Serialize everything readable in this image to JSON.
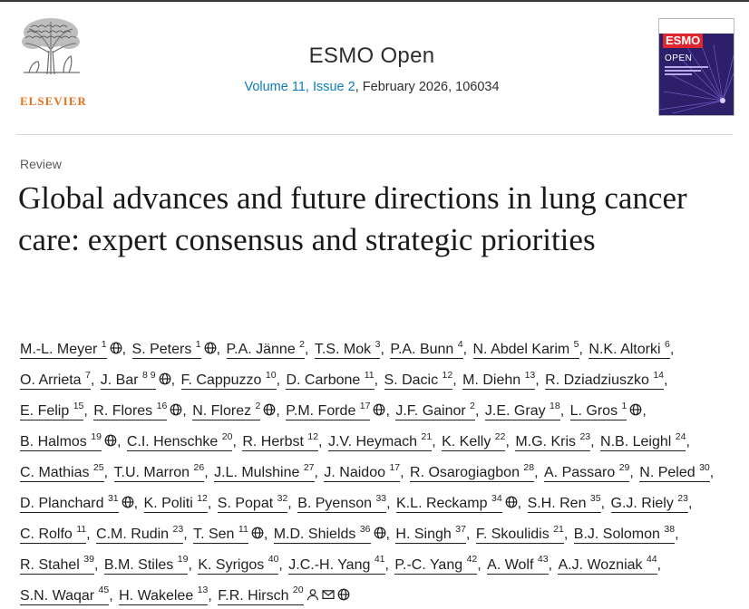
{
  "header": {
    "publisher": "ELSEVIER",
    "journal_title": "ESMO Open",
    "volume_link": "Volume 11, Issue 2",
    "issue_rest": ", February 2026, 106034",
    "cover": {
      "brand": "ESMO",
      "title": "OPEN"
    }
  },
  "article": {
    "kind": "Review",
    "title": "Global advances and future directions in lung cancer care: expert consensus and strategic priorities"
  },
  "icons": {
    "orcid": "globe-icon",
    "person": "person-icon",
    "email": "envelope-icon"
  },
  "colors": {
    "link": "#0c7dbb",
    "elsevier_orange": "#e9711c",
    "cover_bg": "#2e1f6b"
  },
  "authors": [
    {
      "name": "M.-L. Meyer",
      "sup": "1",
      "globe": true
    },
    {
      "name": "S. Peters",
      "sup": "1",
      "globe": true
    },
    {
      "name": "P.A. Jänne",
      "sup": "2"
    },
    {
      "name": "T.S. Mok",
      "sup": "3"
    },
    {
      "name": "P.A. Bunn",
      "sup": "4"
    },
    {
      "name": "N. Abdel Karim",
      "sup": "5"
    },
    {
      "name": "N.K. Altorki",
      "sup": "6"
    },
    {
      "name": "O. Arrieta",
      "sup": "7"
    },
    {
      "name": "J. Bar",
      "sup": "8 9",
      "globe": true
    },
    {
      "name": "F. Cappuzzo",
      "sup": "10"
    },
    {
      "name": "D. Carbone",
      "sup": "11"
    },
    {
      "name": "S. Dacic",
      "sup": "12"
    },
    {
      "name": "M. Diehn",
      "sup": "13"
    },
    {
      "name": "R. Dziadziuszko",
      "sup": "14"
    },
    {
      "name": "E. Felip",
      "sup": "15"
    },
    {
      "name": "R. Flores",
      "sup": "16",
      "globe": true
    },
    {
      "name": "N. Florez",
      "sup": "2",
      "globe": true
    },
    {
      "name": "P.M. Forde",
      "sup": "17",
      "globe": true
    },
    {
      "name": "J.F. Gainor",
      "sup": "2"
    },
    {
      "name": "J.E. Gray",
      "sup": "18"
    },
    {
      "name": "L. Gros",
      "sup": "1",
      "globe": true
    },
    {
      "name": "B. Halmos",
      "sup": "19",
      "globe": true
    },
    {
      "name": "C.I. Henschke",
      "sup": "20"
    },
    {
      "name": "R. Herbst",
      "sup": "12"
    },
    {
      "name": "J.V. Heymach",
      "sup": "21"
    },
    {
      "name": "K. Kelly",
      "sup": "22"
    },
    {
      "name": "M.G. Kris",
      "sup": "23"
    },
    {
      "name": "N.B. Leighl",
      "sup": "24"
    },
    {
      "name": "C. Mathias",
      "sup": "25"
    },
    {
      "name": "T.U. Marron",
      "sup": "26"
    },
    {
      "name": "J.L. Mulshine",
      "sup": "27"
    },
    {
      "name": "J. Naidoo",
      "sup": "17"
    },
    {
      "name": "R. Osarogiagbon",
      "sup": "28"
    },
    {
      "name": "A. Passaro",
      "sup": "29"
    },
    {
      "name": "N. Peled",
      "sup": "30"
    },
    {
      "name": "D. Planchard",
      "sup": "31",
      "globe": true
    },
    {
      "name": "K. Politi",
      "sup": "12"
    },
    {
      "name": "S. Popat",
      "sup": "32"
    },
    {
      "name": "B. Pyenson",
      "sup": "33"
    },
    {
      "name": "K.L. Reckamp",
      "sup": "34",
      "globe": true
    },
    {
      "name": "S.H. Ren",
      "sup": "35"
    },
    {
      "name": "G.J. Riely",
      "sup": "23"
    },
    {
      "name": "C. Rolfo",
      "sup": "11"
    },
    {
      "name": "C.M. Rudin",
      "sup": "23"
    },
    {
      "name": "T. Sen",
      "sup": "11",
      "globe": true
    },
    {
      "name": "M.D. Shields",
      "sup": "36",
      "globe": true
    },
    {
      "name": "H. Singh",
      "sup": "37"
    },
    {
      "name": "F. Skoulidis",
      "sup": "21"
    },
    {
      "name": "B.J. Solomon",
      "sup": "38"
    },
    {
      "name": "R. Stahel",
      "sup": "39"
    },
    {
      "name": "B.M. Stiles",
      "sup": "19"
    },
    {
      "name": "K. Syrigos",
      "sup": "40"
    },
    {
      "name": "J.C.-H. Yang",
      "sup": "41"
    },
    {
      "name": "P.-C. Yang",
      "sup": "42"
    },
    {
      "name": "A. Wolf",
      "sup": "43"
    },
    {
      "name": "A.J. Wozniak",
      "sup": "44"
    },
    {
      "name": "S.N. Waqar",
      "sup": "45"
    },
    {
      "name": "H. Wakelee",
      "sup": "13"
    },
    {
      "name": "F.R. Hirsch",
      "sup": "20",
      "person": true,
      "email": true,
      "globe": true
    }
  ]
}
